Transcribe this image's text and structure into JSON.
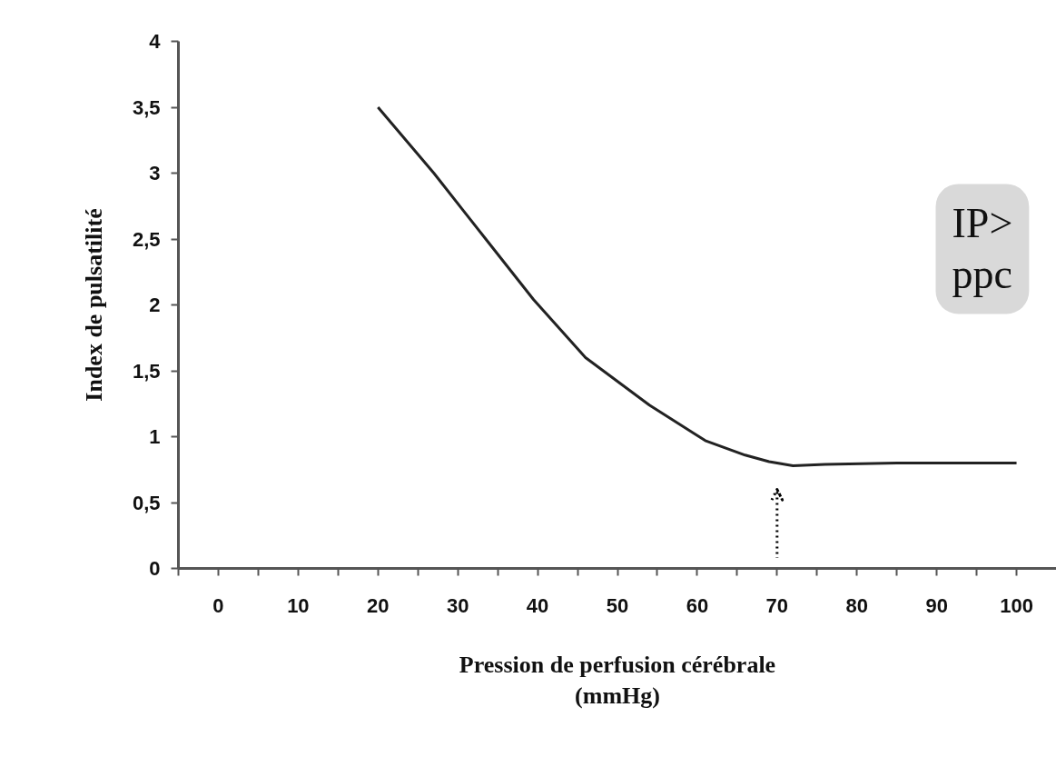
{
  "chart_data": {
    "type": "line",
    "xlabel": "Pression de perfusion cérébrale\n(mmHg)",
    "ylabel": "Index de pulsatilité",
    "xlim": [
      -5,
      105
    ],
    "ylim": [
      0,
      4
    ],
    "xticks": [
      {
        "value": -5,
        "label": null
      },
      0,
      {
        "value": 5,
        "label": null
      },
      10,
      {
        "value": 15,
        "label": null
      },
      20,
      {
        "value": 25,
        "label": null
      },
      30,
      {
        "value": 35,
        "label": null
      },
      40,
      {
        "value": 45,
        "label": null
      },
      50,
      {
        "value": 55,
        "label": null
      },
      60,
      {
        "value": 65,
        "label": null
      },
      70,
      {
        "value": 75,
        "label": null
      },
      80,
      {
        "value": 85,
        "label": null
      },
      90,
      {
        "value": 95,
        "label": null
      },
      100
    ],
    "yticks": [
      0,
      {
        "value": 0.5,
        "label": "0,5"
      },
      1,
      {
        "value": 1.5,
        "label": "1,5"
      },
      2,
      {
        "value": 2.5,
        "label": "2,5"
      },
      3,
      {
        "value": 3.5,
        "label": "3,5"
      },
      4
    ],
    "x": [
      20,
      27,
      33.5,
      39.5,
      46,
      54,
      61,
      66,
      69,
      72,
      76,
      85,
      100
    ],
    "series": [
      {
        "color": "#222222",
        "values": [
          3.5,
          3.0,
          2.5,
          2.04,
          1.6,
          1.24,
          0.97,
          0.86,
          0.81,
          0.78,
          0.79,
          0.8,
          0.8
        ]
      }
    ],
    "ref_lines": [
      {
        "axis": "x",
        "value": 70,
        "line_style": "dotted",
        "color": "#000000"
      }
    ],
    "annotations": [
      "IP>\nppc"
    ],
    "grid": false,
    "marker": "none",
    "line_style": "solid"
  }
}
